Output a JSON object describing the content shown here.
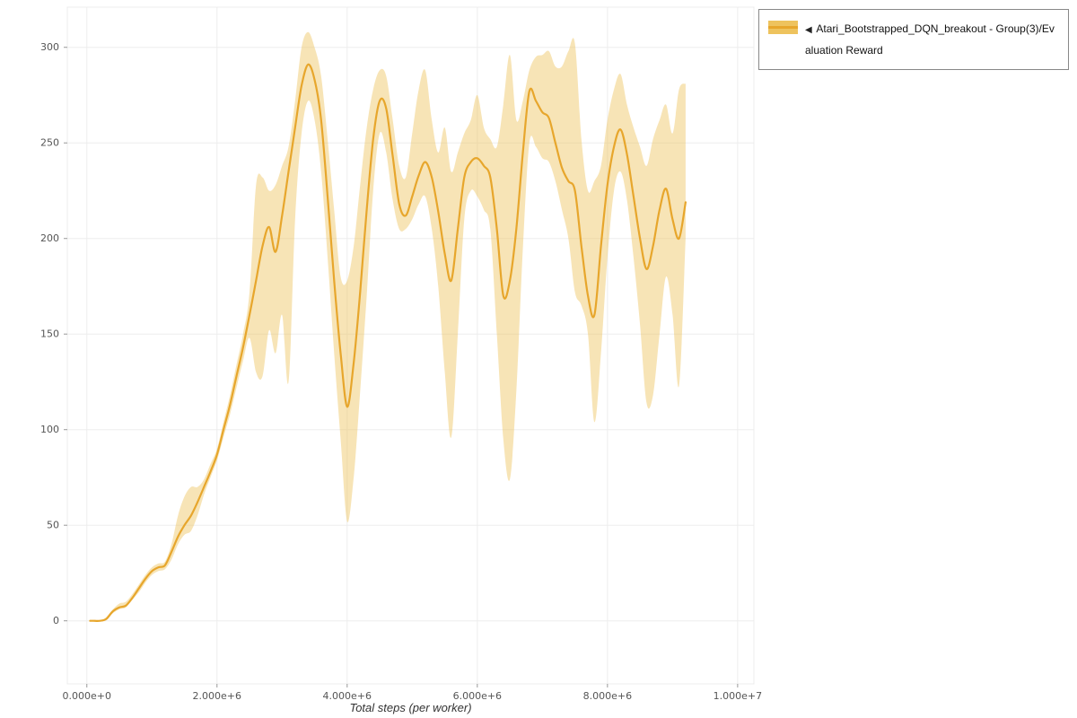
{
  "page": {
    "background": "#ffffff"
  },
  "legend": {
    "collapse_icon": "◀",
    "label": "Atari_Bootstrapped_DQN_breakout - Group(3)/Evaluation Reward",
    "border_color": "#888888"
  },
  "chart_data": {
    "type": "line",
    "title": "",
    "xlabel": "Total steps (per worker)",
    "ylabel": "",
    "x_unit": "steps, stored in millions (1e6)",
    "grid": true,
    "legend_position": "top-right",
    "xlim": [
      -0.3,
      10.25
    ],
    "ylim": [
      -33,
      321
    ],
    "xticks": [
      0,
      2,
      4,
      6,
      8,
      10
    ],
    "xtick_labels": [
      "0.000e+0",
      "2.000e+6",
      "4.000e+6",
      "6.000e+6",
      "8.000e+6",
      "1.000e+7"
    ],
    "yticks": [
      0,
      50,
      100,
      150,
      200,
      250,
      300
    ],
    "ytick_labels": [
      "0",
      "50",
      "100",
      "150",
      "200",
      "250",
      "300"
    ],
    "series": [
      {
        "name": "Atari_Bootstrapped_DQN_breakout - Group(3)/Evaluation Reward",
        "color": "#e7a62c",
        "band_color": "#eec35e",
        "band_opacity": 0.45,
        "points_format": [
          "x_e6",
          "mean",
          "band_lower",
          "band_upper"
        ],
        "points": [
          [
            0.05,
            0,
            0,
            0
          ],
          [
            0.1,
            0,
            0,
            0
          ],
          [
            0.2,
            0,
            0,
            0
          ],
          [
            0.3,
            1,
            1,
            2
          ],
          [
            0.4,
            5,
            4,
            6
          ],
          [
            0.5,
            7,
            6,
            9
          ],
          [
            0.6,
            8,
            7,
            10
          ],
          [
            0.7,
            12,
            11,
            14
          ],
          [
            0.8,
            17,
            15,
            19
          ],
          [
            0.9,
            22,
            20,
            24
          ],
          [
            1.0,
            26,
            24,
            28
          ],
          [
            1.1,
            28,
            26,
            30
          ],
          [
            1.2,
            29,
            27,
            31
          ],
          [
            1.3,
            36,
            32,
            40
          ],
          [
            1.4,
            44,
            40,
            55
          ],
          [
            1.5,
            50,
            45,
            65
          ],
          [
            1.6,
            55,
            47,
            70
          ],
          [
            1.7,
            62,
            55,
            70
          ],
          [
            1.8,
            70,
            66,
            74
          ],
          [
            1.9,
            78,
            75,
            82
          ],
          [
            2.0,
            87,
            84,
            90
          ],
          [
            2.1,
            100,
            96,
            104
          ],
          [
            2.2,
            113,
            108,
            118
          ],
          [
            2.3,
            128,
            122,
            134
          ],
          [
            2.4,
            143,
            136,
            150
          ],
          [
            2.5,
            160,
            148,
            172
          ],
          [
            2.6,
            178,
            130,
            228
          ],
          [
            2.7,
            196,
            128,
            232
          ],
          [
            2.8,
            206,
            152,
            225
          ],
          [
            2.9,
            193,
            140,
            228
          ],
          [
            3.0,
            212,
            160,
            238
          ],
          [
            3.1,
            235,
            125,
            248
          ],
          [
            3.2,
            258,
            210,
            272
          ],
          [
            3.3,
            280,
            255,
            300
          ],
          [
            3.4,
            291,
            272,
            308
          ],
          [
            3.5,
            283,
            262,
            300
          ],
          [
            3.6,
            262,
            235,
            285
          ],
          [
            3.7,
            222,
            190,
            252
          ],
          [
            3.8,
            178,
            140,
            215
          ],
          [
            3.9,
            140,
            95,
            180
          ],
          [
            4.0,
            112,
            52,
            178
          ],
          [
            4.1,
            135,
            75,
            196
          ],
          [
            4.2,
            172,
            120,
            228
          ],
          [
            4.3,
            215,
            170,
            258
          ],
          [
            4.4,
            252,
            225,
            278
          ],
          [
            4.5,
            272,
            255,
            288
          ],
          [
            4.6,
            268,
            245,
            285
          ],
          [
            4.7,
            243,
            220,
            262
          ],
          [
            4.8,
            218,
            205,
            238
          ],
          [
            4.9,
            212,
            205,
            232
          ],
          [
            5.0,
            222,
            210,
            255
          ],
          [
            5.1,
            233,
            218,
            278
          ],
          [
            5.2,
            240,
            222,
            288
          ],
          [
            5.3,
            232,
            205,
            262
          ],
          [
            5.4,
            214,
            175,
            245
          ],
          [
            5.5,
            192,
            130,
            258
          ],
          [
            5.6,
            178,
            96,
            235
          ],
          [
            5.7,
            205,
            150,
            245
          ],
          [
            5.8,
            232,
            210,
            255
          ],
          [
            5.9,
            240,
            225,
            262
          ],
          [
            6.0,
            242,
            222,
            275
          ],
          [
            6.1,
            238,
            215,
            258
          ],
          [
            6.2,
            232,
            205,
            252
          ],
          [
            6.3,
            205,
            150,
            248
          ],
          [
            6.4,
            170,
            95,
            270
          ],
          [
            6.5,
            178,
            74,
            296
          ],
          [
            6.6,
            205,
            120,
            262
          ],
          [
            6.7,
            245,
            195,
            272
          ],
          [
            6.8,
            277,
            250,
            288
          ],
          [
            6.9,
            272,
            248,
            295
          ],
          [
            7.0,
            266,
            242,
            296
          ],
          [
            7.1,
            263,
            240,
            298
          ],
          [
            7.2,
            250,
            230,
            290
          ],
          [
            7.3,
            237,
            215,
            290
          ],
          [
            7.4,
            230,
            200,
            298
          ],
          [
            7.5,
            225,
            172,
            302
          ],
          [
            7.6,
            196,
            165,
            252
          ],
          [
            7.7,
            170,
            150,
            225
          ],
          [
            7.8,
            160,
            104,
            230
          ],
          [
            7.9,
            196,
            140,
            238
          ],
          [
            8.0,
            228,
            190,
            262
          ],
          [
            8.1,
            248,
            225,
            278
          ],
          [
            8.2,
            257,
            235,
            286
          ],
          [
            8.3,
            244,
            220,
            270
          ],
          [
            8.4,
            222,
            190,
            258
          ],
          [
            8.5,
            200,
            155,
            248
          ],
          [
            8.6,
            184,
            114,
            238
          ],
          [
            8.7,
            196,
            118,
            252
          ],
          [
            8.8,
            215,
            150,
            262
          ],
          [
            8.9,
            226,
            180,
            270
          ],
          [
            9.0,
            210,
            160,
            255
          ],
          [
            9.1,
            200,
            123,
            278
          ],
          [
            9.2,
            219,
            200,
            281
          ]
        ]
      }
    ]
  }
}
